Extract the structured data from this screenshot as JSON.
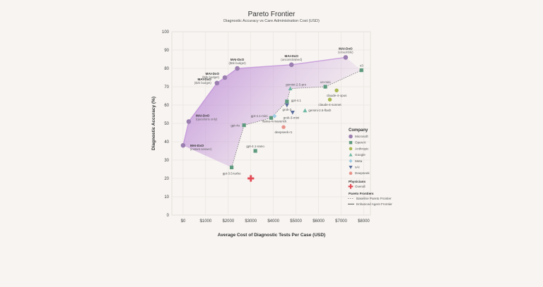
{
  "chart_data": {
    "type": "scatter",
    "title": "Pareto Frontier",
    "subtitle": "Diagnostic Accuracy vs Care Administration Cost (USD)",
    "xlabel": "Average Cost of Diagnostic Tests Per Case (USD)",
    "ylabel": "Diagnostic Accuracy (%)",
    "xlim": [
      -500,
      8300
    ],
    "ylim": [
      0,
      100
    ],
    "xticks": [
      0,
      1000,
      2000,
      3000,
      4000,
      5000,
      6000,
      7000,
      8000
    ],
    "xtick_labels": [
      "$0",
      "$1000",
      "$2000",
      "$3000",
      "$4000",
      "$5000",
      "$6000",
      "$7000",
      "$8000"
    ],
    "yticks": [
      0,
      10,
      20,
      30,
      40,
      50,
      60,
      70,
      80,
      90,
      100
    ],
    "grid": true,
    "legend_position": "right",
    "colors": {
      "Microsoft": "#9b7fb0",
      "OpenAI": "#5e9a7e",
      "Anthropic": "#a9b94f",
      "Google": "#6fb9a4",
      "Meta": "#9ccbe3",
      "xAI": "#5a6e9c",
      "Deepseek": "#e8938a",
      "Overall": "#e34a55",
      "frontier_fill": "#c090d8"
    },
    "legend": {
      "company_title": "Company",
      "companies": [
        "Microsoft",
        "OpenAI",
        "Anthropic",
        "Google",
        "Meta",
        "xAI",
        "Deepseek"
      ],
      "physicians_title": "Physicians",
      "physicians": [
        "Overall"
      ],
      "frontiers_title": "Pareto Frontiers",
      "frontiers": [
        "Baseline Pareto Frontier",
        "Enhanced Agent Frontier"
      ]
    },
    "enhanced_frontier": [
      {
        "name": "MAI-DxO",
        "sub": "(instant answer)",
        "company": "Microsoft",
        "x": 0,
        "y": 38
      },
      {
        "name": "MAI-DxO",
        "sub": "(questions only)",
        "company": "Microsoft",
        "x": 250,
        "y": 51
      },
      {
        "name": "MAI-DxO",
        "sub": "($2k budget)",
        "company": "Microsoft",
        "x": 1500,
        "y": 72
      },
      {
        "name": "MAI-DxO",
        "sub": "($4k budget)",
        "company": "Microsoft",
        "x": 1850,
        "y": 75
      },
      {
        "name": "MAI-DxO",
        "sub": "($6k budget)",
        "company": "Microsoft",
        "x": 2400,
        "y": 80
      },
      {
        "name": "MAI-DxO",
        "sub": "(unconstrained)",
        "company": "Microsoft",
        "x": 4800,
        "y": 82
      },
      {
        "name": "MAI-DxO",
        "sub": "(ensemble)",
        "company": "Microsoft",
        "x": 7200,
        "y": 86
      }
    ],
    "baseline_frontier": [
      {
        "name": "gpt-3.5-turbo",
        "company": "OpenAI",
        "x": 2150,
        "y": 26
      },
      {
        "name": "gpt-4o",
        "company": "OpenAI",
        "x": 2700,
        "y": 49
      },
      {
        "name": "gpt-4.1-mini",
        "company": "OpenAI",
        "x": 3900,
        "y": 53
      },
      {
        "name": "gpt-4.1",
        "company": "OpenAI",
        "x": 4600,
        "y": 62
      },
      {
        "name": "gemini-2.5-pro",
        "company": "Google",
        "x": 4750,
        "y": 69
      },
      {
        "name": "o4-mini",
        "company": "OpenAI",
        "x": 6300,
        "y": 70
      },
      {
        "name": "o3",
        "company": "OpenAI",
        "x": 7900,
        "y": 79
      }
    ],
    "other_points": [
      {
        "name": "gpt-4.1-nano",
        "company": "OpenAI",
        "x": 3200,
        "y": 35
      },
      {
        "name": "claude-4-opus",
        "company": "Anthropic",
        "x": 6800,
        "y": 68
      },
      {
        "name": "claude-4-sonnet",
        "company": "Anthropic",
        "x": 6500,
        "y": 63
      },
      {
        "name": "grok-3",
        "company": "xAI",
        "x": 4600,
        "y": 60
      },
      {
        "name": "grok-3-mini",
        "company": "xAI",
        "x": 4850,
        "y": 56
      },
      {
        "name": "gemini-2.5-flash",
        "company": "Google",
        "x": 5400,
        "y": 57
      },
      {
        "name": "llama-4-maverick",
        "company": "Meta",
        "x": 4050,
        "y": 54
      },
      {
        "name": "deepseek-r1",
        "company": "Deepseek",
        "x": 4450,
        "y": 48
      },
      {
        "name": "Overall",
        "company": "Overall",
        "x": 3000,
        "y": 20
      }
    ]
  }
}
